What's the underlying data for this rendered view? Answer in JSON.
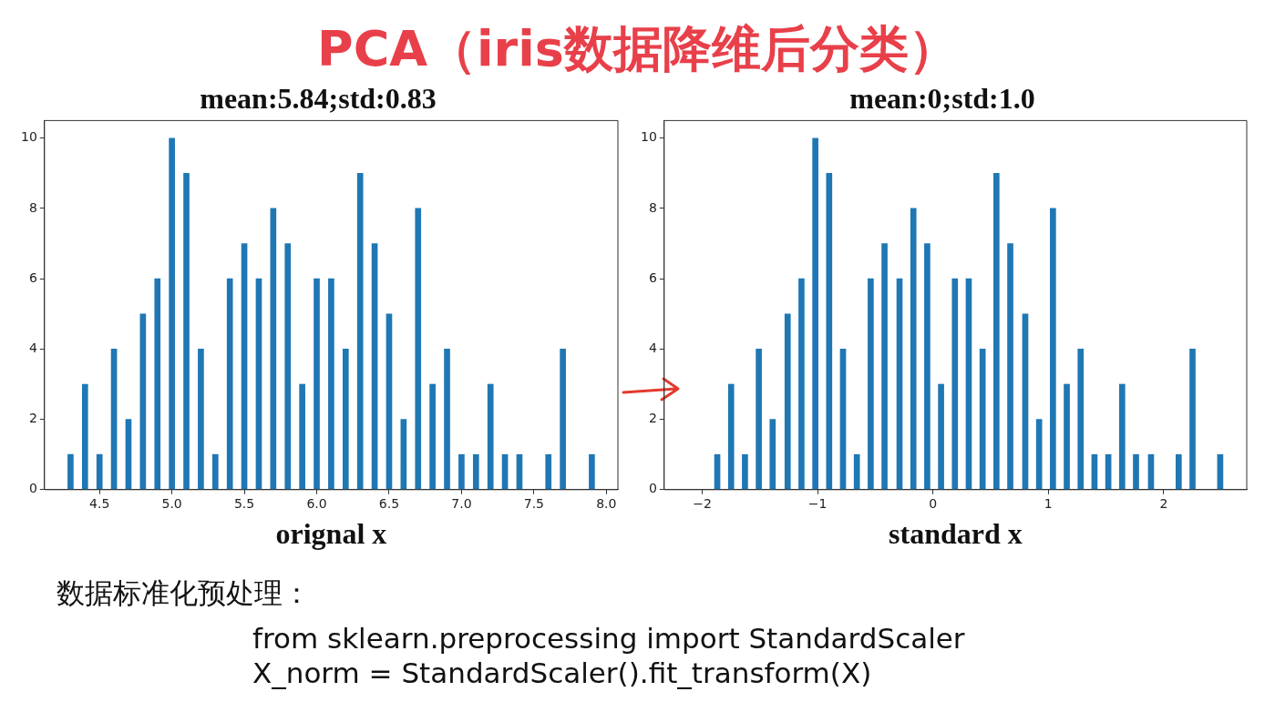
{
  "chart_data": [
    {
      "type": "other",
      "title": "PCA（iris数据降维后分类）"
    },
    {
      "type": "bar",
      "title": "mean:5.84;std:0.83",
      "xlabel": "orignal x",
      "color": "#1f77b4",
      "x": [
        4.3,
        4.4,
        4.5,
        4.6,
        4.7,
        4.8,
        4.9,
        5.0,
        5.1,
        5.2,
        5.3,
        5.4,
        5.5,
        5.6,
        5.7,
        5.8,
        5.9,
        6.0,
        6.1,
        6.2,
        6.3,
        6.4,
        6.5,
        6.6,
        6.7,
        6.8,
        6.9,
        7.0,
        7.1,
        7.2,
        7.3,
        7.4,
        7.6,
        7.7,
        7.9
      ],
      "values": [
        1,
        3,
        1,
        4,
        2,
        5,
        6,
        10,
        9,
        4,
        1,
        6,
        7,
        6,
        8,
        7,
        3,
        6,
        6,
        4,
        9,
        7,
        5,
        2,
        8,
        3,
        4,
        1,
        1,
        3,
        1,
        1,
        1,
        4,
        1
      ],
      "xlim": [
        4.12,
        8.08
      ],
      "xticks": [
        {
          "value": 4.5,
          "label": "4.5"
        },
        {
          "value": 5,
          "label": "5.0"
        },
        {
          "value": 5.5,
          "label": "5.5"
        },
        {
          "value": 6,
          "label": "6.0"
        },
        {
          "value": 6.5,
          "label": "6.5"
        },
        {
          "value": 7,
          "label": "7.0"
        },
        {
          "value": 7.5,
          "label": "7.5"
        },
        {
          "value": 8,
          "label": "8.0"
        }
      ],
      "ylim": [
        0,
        10.5
      ],
      "yticks": [
        0,
        2,
        4,
        6,
        8,
        10
      ]
    },
    {
      "type": "bar",
      "title": "mean:0;std:1.0",
      "xlabel": "standard x",
      "color": "#1f77b4",
      "x": [
        -1.87,
        -1.75,
        -1.63,
        -1.51,
        -1.39,
        -1.26,
        -1.14,
        -1.02,
        -0.9,
        -0.78,
        -0.66,
        -0.54,
        -0.42,
        -0.29,
        -0.17,
        -0.05,
        0.07,
        0.19,
        0.31,
        0.43,
        0.55,
        0.67,
        0.8,
        0.92,
        1.04,
        1.16,
        1.28,
        1.4,
        1.52,
        1.64,
        1.76,
        1.89,
        2.13,
        2.25,
        2.49
      ],
      "values": [
        1,
        3,
        1,
        4,
        2,
        5,
        6,
        10,
        9,
        4,
        1,
        6,
        7,
        6,
        8,
        7,
        3,
        6,
        6,
        4,
        9,
        7,
        5,
        2,
        8,
        3,
        4,
        1,
        1,
        3,
        1,
        1,
        1,
        4,
        1
      ],
      "xlim": [
        -2.33,
        2.72
      ],
      "xticks": [
        {
          "value": -2,
          "label": "−2"
        },
        {
          "value": -1,
          "label": "−1"
        },
        0,
        1,
        2
      ],
      "ylim": [
        0,
        10.5
      ],
      "yticks": [
        0,
        2,
        4,
        6,
        8,
        10
      ]
    },
    {
      "type": "other",
      "annotations": [
        "数据标准化预处理：",
        "from sklearn.preprocessing import StandardScaler",
        "X_norm = StandardScaler().fit_transform(X)"
      ]
    }
  ]
}
